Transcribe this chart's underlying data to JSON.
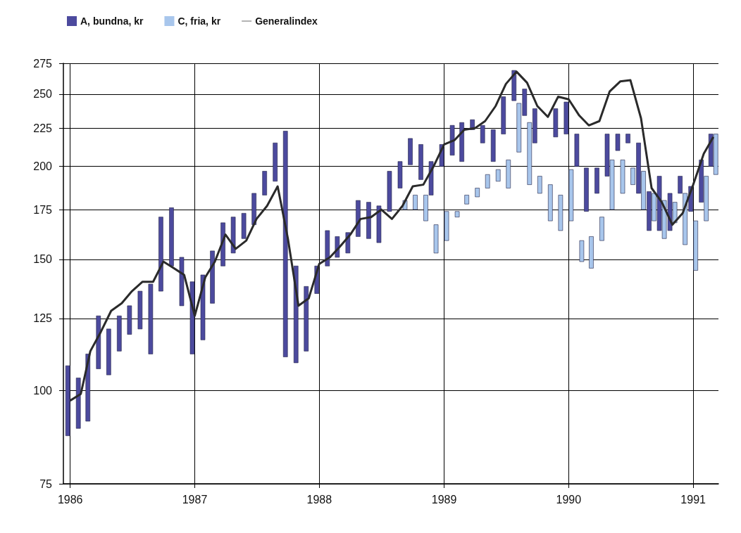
{
  "chart_data": {
    "type": "bar",
    "log": "y",
    "grid": true,
    "legend": "top left",
    "x": [
      "1986-01",
      "1986-02",
      "1986-03",
      "1986-04",
      "1986-05",
      "1986-06",
      "1986-07",
      "1986-08",
      "1986-09",
      "1986-10",
      "1986-11",
      "1986-12",
      "1987-01",
      "1987-02",
      "1987-03",
      "1987-04",
      "1987-05",
      "1987-06",
      "1987-07",
      "1987-08",
      "1987-09",
      "1987-10",
      "1987-11",
      "1987-12",
      "1988-01",
      "1988-02",
      "1988-03",
      "1988-04",
      "1988-05",
      "1988-06",
      "1988-07",
      "1988-08",
      "1988-09",
      "1988-10",
      "1988-11",
      "1988-12",
      "1989-01",
      "1989-02",
      "1989-03",
      "1989-04",
      "1989-05",
      "1989-06",
      "1989-07",
      "1989-08",
      "1989-09",
      "1989-10",
      "1989-11",
      "1989-12",
      "1990-01",
      "1990-02",
      "1990-03",
      "1990-04",
      "1990-05",
      "1990-06",
      "1990-07",
      "1990-08",
      "1990-09",
      "1990-10",
      "1990-11",
      "1990-12",
      "1991-01",
      "1991-02",
      "1991-03"
    ],
    "xlim": [
      "1985-12-12",
      "1991-03-16"
    ],
    "xticks": [
      "1986",
      "1987",
      "1988",
      "1989",
      "1990",
      "1991"
    ],
    "ylim": [
      75,
      275
    ],
    "yticks": [
      75,
      100,
      125,
      150,
      175,
      200,
      225,
      250,
      275
    ],
    "series": [
      {
        "name": "A, bundna, kr",
        "color": "#4c4a9e",
        "base": [
          87,
          89,
          91,
          107,
          105,
          113,
          119,
          121,
          112,
          136,
          147,
          130,
          112,
          117,
          131,
          147,
          153,
          160,
          167,
          183,
          191,
          111,
          109,
          113,
          135,
          147,
          151,
          153,
          161,
          160,
          158,
          174,
          187,
          201,
          192,
          183,
          200,
          207,
          203,
          224,
          215,
          203,
          221,
          245,
          234,
          215,
          null,
          219,
          221,
          200,
          174,
          184,
          194,
          210,
          215,
          184,
          164,
          164,
          164,
          184,
          174,
          179,
          200
        ],
        "values": [
          21,
          15,
          21,
          19,
          16,
          13,
          11,
          15,
          27,
          35,
          29,
          21,
          28,
          26,
          23,
          21,
          18,
          13,
          17,
          14,
          24,
          112,
          38,
          25,
          12,
          17,
          10,
          10,
          19,
          19,
          19,
          23,
          16,
          17,
          22,
          20,
          14,
          20,
          26,
          7,
          12,
          21,
          27,
          24,
          20,
          24,
          null,
          20,
          23,
          21,
          25,
          15,
          27,
          11,
          6,
          31,
          21,
          30,
          20,
          10,
          14,
          25,
          21
        ]
      },
      {
        "name": "C, fria, kr",
        "color": "#a8c6ec",
        "x": [
          "1988-09",
          "1988-10",
          "1988-11",
          "1988-12",
          "1989-01",
          "1989-02",
          "1989-03",
          "1989-04",
          "1989-05",
          "1989-06",
          "1989-07",
          "1989-08",
          "1989-09",
          "1989-10",
          "1989-11",
          "1989-12",
          "1990-01",
          "1990-02",
          "1990-03",
          "1990-04",
          "1990-05",
          "1990-06",
          "1990-07",
          "1990-08",
          "1990-09",
          "1990-10",
          "1990-11",
          "1990-12",
          "1991-01",
          "1991-02",
          "1991-03"
        ],
        "base": [
          175,
          175,
          169,
          153,
          159,
          171,
          178,
          182,
          187,
          191,
          187,
          209,
          189,
          184,
          169,
          164,
          169,
          149,
          146,
          159,
          175,
          184,
          189,
          175,
          169,
          160,
          168,
          157,
          145,
          169,
          195
        ],
        "values": [
          5,
          8,
          14,
          14,
          15,
          3,
          5,
          5,
          8,
          7,
          17,
          34,
          40,
          10,
          20,
          19,
          29,
          10,
          15,
          12,
          29,
          20,
          10,
          22,
          15,
          20,
          11,
          27,
          24,
          25,
          26
        ]
      },
      {
        "name": "Generalindex",
        "type": "line",
        "color": "#2a2a2a",
        "values": [
          97,
          99,
          113,
          120,
          128,
          131,
          136,
          140,
          140,
          149,
          146,
          143,
          126,
          142,
          149,
          162,
          155,
          159,
          170,
          177,
          188,
          160,
          130,
          133,
          148,
          151,
          156,
          162,
          170,
          171,
          175,
          170,
          177,
          188,
          189,
          200,
          214,
          217,
          224,
          225,
          230,
          241,
          258,
          268,
          259,
          241,
          233,
          248,
          246,
          234,
          227,
          230,
          252,
          260,
          261,
          232,
          187,
          179,
          167,
          173,
          189,
          208,
          219
        ]
      }
    ]
  }
}
